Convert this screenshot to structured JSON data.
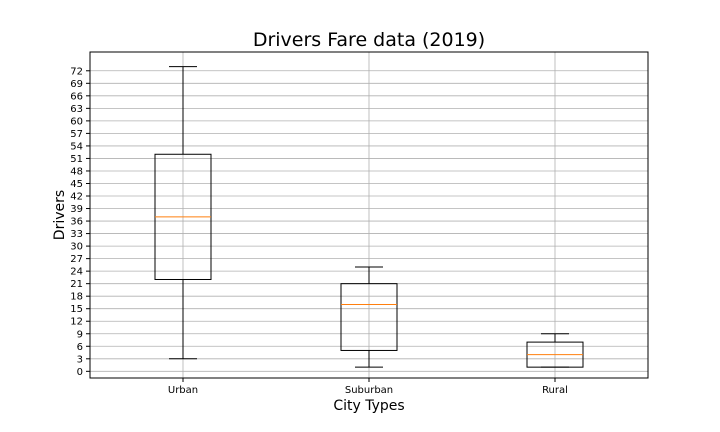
{
  "chart_data": {
    "type": "box",
    "title": "Drivers Fare data (2019)",
    "xlabel": "City Types",
    "ylabel": "Drivers",
    "categories": [
      "Urban",
      "Suburban",
      "Rural"
    ],
    "boxes": [
      {
        "name": "Urban",
        "whisker_low": 3,
        "q1": 22,
        "median": 37,
        "q3": 52,
        "whisker_high": 73
      },
      {
        "name": "Suburban",
        "whisker_low": 1,
        "q1": 5,
        "median": 16,
        "q3": 21,
        "whisker_high": 25
      },
      {
        "name": "Rural",
        "whisker_low": 1,
        "q1": 1,
        "median": 4,
        "q3": 7,
        "whisker_high": 9
      }
    ],
    "yticks": [
      0,
      3,
      6,
      9,
      12,
      15,
      18,
      21,
      24,
      27,
      30,
      33,
      36,
      39,
      42,
      45,
      48,
      51,
      54,
      57,
      60,
      63,
      66,
      69,
      72
    ],
    "ylim": [
      -1.6,
      76.5
    ],
    "grid": true,
    "colors": {
      "box": "#000000",
      "median": "#ff7f0e",
      "grid": "#b0b0b0"
    }
  }
}
